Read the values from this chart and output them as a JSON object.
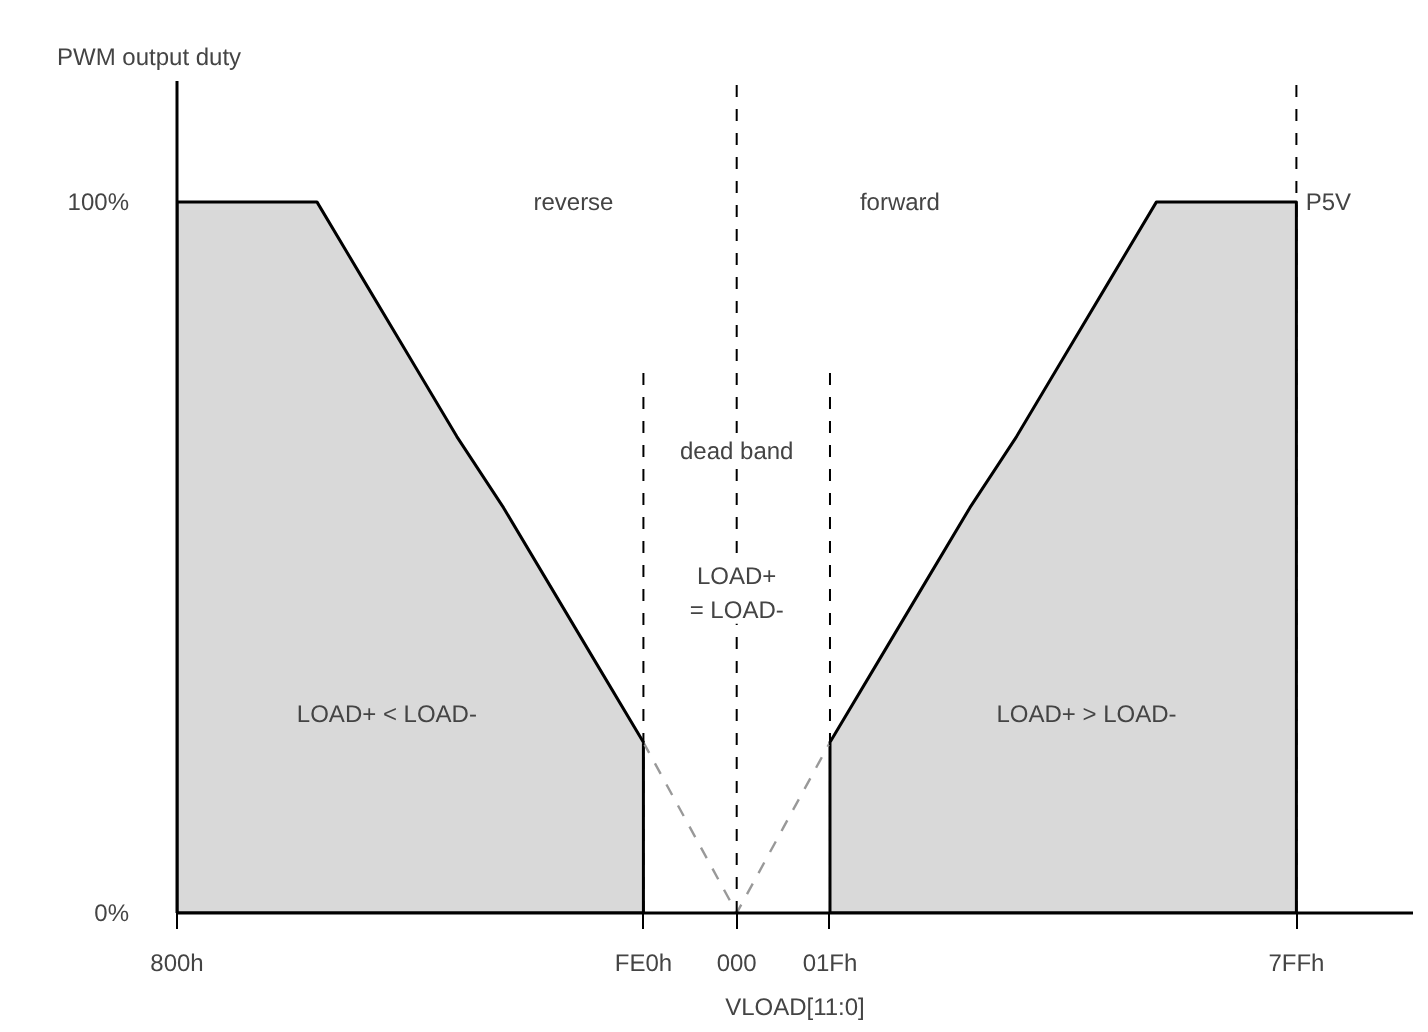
{
  "chart_data": {
    "type": "area",
    "ylabel": "PWM output duty",
    "xlabel": "VLOAD[11:0]",
    "categories": [
      "800h",
      null,
      null,
      null,
      null,
      null,
      null,
      null,
      null,
      null,
      "FE0h",
      null,
      "000",
      null,
      "01Fh",
      null,
      null,
      null,
      null,
      null,
      null,
      null,
      null,
      null,
      "7FFh"
    ],
    "series": [
      {
        "color": "#000000",
        "line_style": "solid",
        "values": [
          100,
          100,
          100,
          100,
          89,
          78,
          67,
          57,
          46,
          35,
          24,
          null,
          null,
          null,
          24,
          35,
          46,
          57,
          67,
          78,
          89,
          100,
          100,
          100,
          100
        ]
      },
      {
        "type": "line",
        "color": "#999999",
        "line_style": "dashed",
        "values": [
          null,
          null,
          null,
          null,
          null,
          null,
          null,
          null,
          null,
          null,
          24,
          12,
          0,
          12,
          24,
          null,
          null,
          null,
          null,
          null,
          null,
          null,
          null,
          null,
          null
        ]
      }
    ],
    "ylim": [
      0,
      117
    ],
    "yticks": [
      {
        "value": 0,
        "label": "0%"
      },
      {
        "value": 100,
        "label": "100%"
      }
    ],
    "ref_lines": [
      {
        "axis": "x",
        "value": "000",
        "label": null,
        "line_style": "dashed"
      },
      {
        "axis": "x",
        "value": "7FFh",
        "label": "P5V",
        "line_style": "dashed"
      },
      {
        "axis": "x",
        "value": "FE0h",
        "label": null,
        "line_style": "dashed"
      },
      {
        "axis": "x",
        "value": "01Fh",
        "label": null,
        "line_style": "dashed"
      }
    ],
    "annotations": [
      "reverse",
      "forward",
      "dead band",
      "LOAD+\n= LOAD-",
      "LOAD+ < LOAD-",
      "LOAD+ > LOAD-"
    ],
    "grid": false
  }
}
